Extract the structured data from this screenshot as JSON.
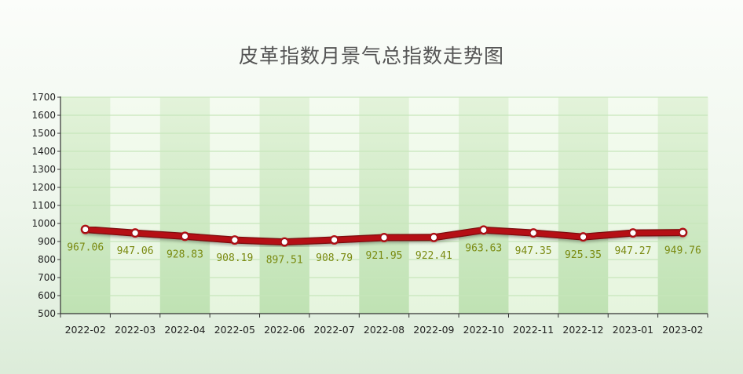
{
  "chart_data": {
    "type": "line",
    "title": "皮革指数月景气总指数走势图",
    "xlabel": "",
    "ylabel": "",
    "ylim": [
      500,
      1700
    ],
    "ytick_step": 100,
    "grid": true,
    "legend": "none",
    "categories": [
      "2022-02",
      "2022-03",
      "2022-04",
      "2022-05",
      "2022-06",
      "2022-07",
      "2022-08",
      "2022-09",
      "2022-10",
      "2022-11",
      "2022-12",
      "2023-01",
      "2023-02"
    ],
    "series": [
      {
        "values": [
          967.06,
          947.06,
          928.83,
          908.19,
          897.51,
          908.79,
          921.95,
          922.41,
          963.63,
          947.35,
          925.35,
          947.27,
          949.76
        ],
        "labels": [
          "967.06",
          "947.06",
          "928.83",
          "908.19",
          "897.51",
          "908.79",
          "921.95",
          "922.41",
          "963.63",
          "947.35",
          "925.35",
          "947.27",
          "949.76"
        ],
        "color": "#b50f15"
      }
    ],
    "colors": {
      "band_dark": "#bfe2b3",
      "band_light": "#e6f5de",
      "grid": "#c7e6bb",
      "axis": "#333333",
      "label": "#7a8a10",
      "marker_fill": "#ffffff"
    }
  }
}
